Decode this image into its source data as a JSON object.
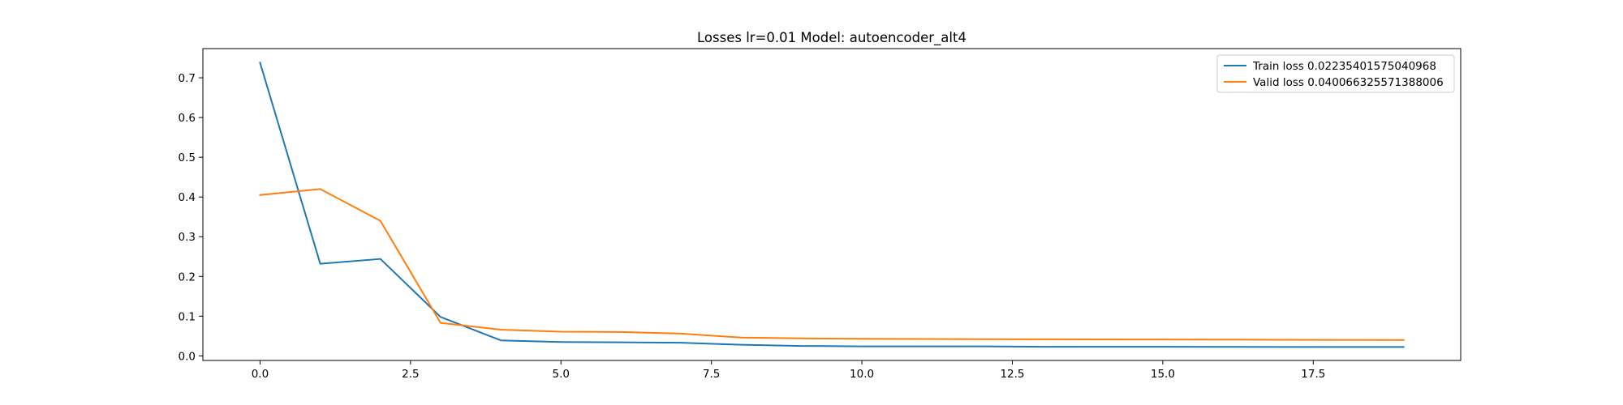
{
  "chart_data": {
    "type": "line",
    "title": "Losses lr=0.01 Model: autoencoder_alt4",
    "xlabel": "",
    "ylabel": "",
    "xlim": [
      -0.95,
      19.95
    ],
    "ylim": [
      -0.0115,
      0.7735
    ],
    "xticks": [
      0.0,
      2.5,
      5.0,
      7.5,
      10.0,
      12.5,
      15.0,
      17.5
    ],
    "xtick_labels": [
      "0.0",
      "2.5",
      "5.0",
      "7.5",
      "10.0",
      "12.5",
      "15.0",
      "17.5"
    ],
    "yticks": [
      0.0,
      0.1,
      0.2,
      0.3,
      0.4,
      0.5,
      0.6,
      0.7
    ],
    "ytick_labels": [
      "0.0",
      "0.1",
      "0.2",
      "0.3",
      "0.4",
      "0.5",
      "0.6",
      "0.7"
    ],
    "grid": false,
    "legend_position": "top-right",
    "x": [
      0,
      1,
      2,
      3,
      4,
      5,
      6,
      7,
      8,
      9,
      10,
      11,
      12,
      13,
      14,
      15,
      16,
      17,
      18,
      19
    ],
    "series": [
      {
        "name": "Train loss 0.02235401575040968",
        "color": "#1f77b4",
        "values": [
          0.738,
          0.232,
          0.244,
          0.098,
          0.039,
          0.035,
          0.034,
          0.033,
          0.028,
          0.025,
          0.024,
          0.024,
          0.024,
          0.023,
          0.023,
          0.023,
          0.0226,
          0.0225,
          0.0224,
          0.02235
        ]
      },
      {
        "name": "Valid loss 0.040066325571388006",
        "color": "#ff7f0e",
        "values": [
          0.405,
          0.42,
          0.34,
          0.083,
          0.066,
          0.061,
          0.06,
          0.056,
          0.046,
          0.044,
          0.043,
          0.0425,
          0.042,
          0.0418,
          0.0415,
          0.0412,
          0.041,
          0.0405,
          0.0402,
          0.04007
        ]
      }
    ]
  }
}
